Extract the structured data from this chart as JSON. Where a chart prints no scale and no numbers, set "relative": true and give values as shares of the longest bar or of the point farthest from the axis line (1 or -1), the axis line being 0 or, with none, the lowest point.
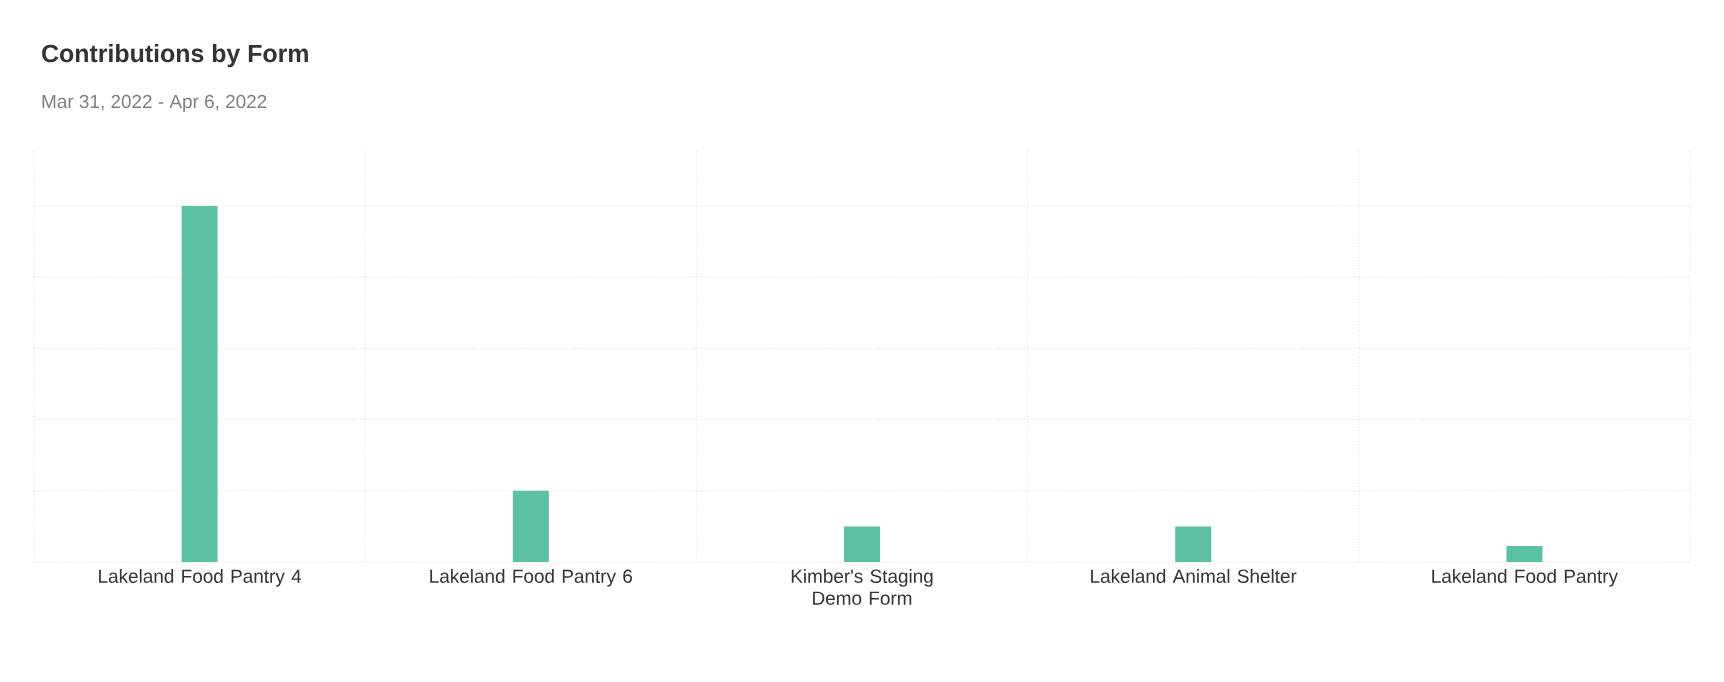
{
  "chart_data": {
    "type": "bar",
    "title": "Contributions by Form",
    "subtitle": "Mar 31, 2022 - Apr 6, 2022",
    "categories": [
      "Lakeland Food Pantry 4",
      "Lakeland Food Pantry 6",
      "Kimber's Staging Demo Form",
      "Lakeland Animal Shelter",
      "Lakeland Food Pantry"
    ],
    "values": [
      1,
      0.2,
      0.1,
      0.1,
      0.045
    ],
    "color": "#5cc0a5",
    "relative": true,
    "grid": true
  }
}
